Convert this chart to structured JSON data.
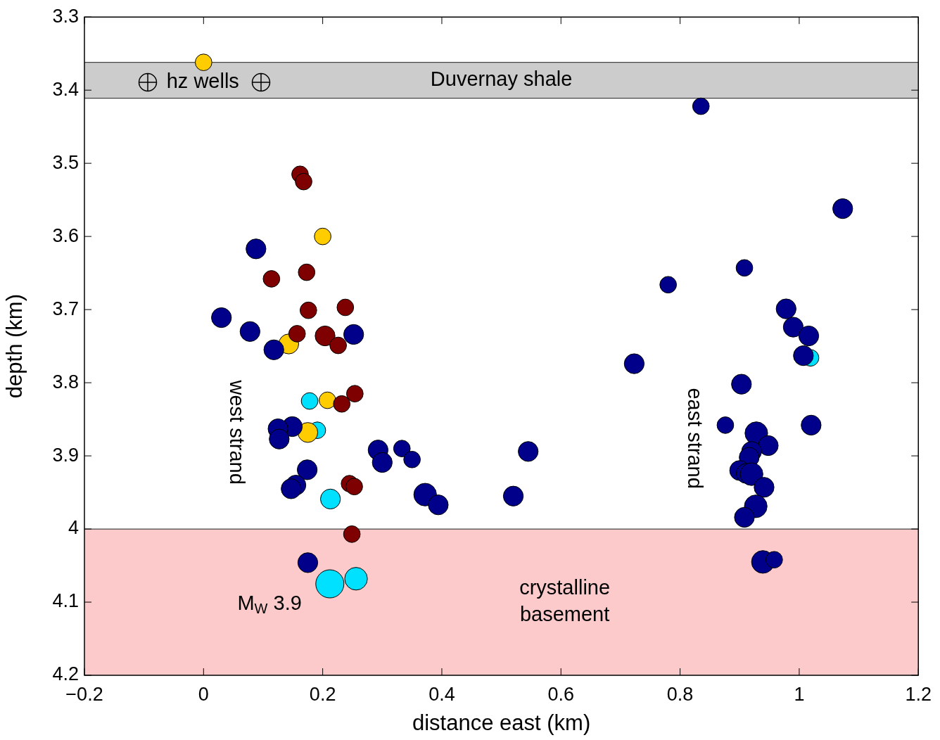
{
  "chart_data": {
    "type": "bubble",
    "xlabel": "distance east (km)",
    "ylabel": "depth (km)",
    "xlim": [
      -0.2,
      1.2
    ],
    "xticks": [
      {
        "value": -0.2,
        "label": "−0.2"
      },
      0,
      0.2,
      0.4,
      0.6,
      0.8,
      1,
      1.2
    ],
    "ylim": [
      4.2,
      3.3
    ],
    "yticks": [
      3.3,
      3.4,
      3.5,
      3.6,
      3.7,
      3.8,
      3.9,
      4,
      4.1,
      4.2
    ],
    "legend": false,
    "series": [
      {
        "color": "#00008b",
        "x": [
          0.088,
          0.03,
          0.078,
          0.118,
          0.252,
          0.149,
          0.125,
          0.127,
          0.174,
          0.155,
          0.147,
          0.293,
          0.3,
          0.333,
          0.35,
          0.372,
          0.394,
          0.52,
          0.545,
          0.175,
          0.835,
          1.073,
          0.78,
          0.908,
          0.723,
          0.978,
          0.99,
          1.016,
          1.007,
          0.903,
          0.876,
          1.02,
          0.928,
          0.948,
          0.92,
          0.916,
          0.9,
          0.911,
          0.92,
          0.941,
          0.927,
          0.908,
          0.939,
          0.958
        ],
        "values": [
          3.617,
          3.711,
          3.73,
          3.755,
          3.734,
          3.86,
          3.863,
          3.877,
          3.919,
          3.94,
          3.945,
          3.892,
          3.909,
          3.89,
          3.905,
          3.953,
          3.967,
          3.955,
          3.894,
          4.046,
          3.422,
          3.562,
          3.666,
          3.643,
          3.774,
          3.699,
          3.724,
          3.736,
          3.763,
          3.802,
          3.858,
          3.858,
          3.869,
          3.886,
          3.894,
          3.902,
          3.92,
          3.924,
          3.925,
          3.943,
          3.969,
          3.984,
          4.045,
          4.042
        ],
        "sizes": [
          0.5,
          0.5,
          0.5,
          0.5,
          0.5,
          0.5,
          0.5,
          0.5,
          0.5,
          0.5,
          0.5,
          0.5,
          0.5,
          0.35,
          0.35,
          0.65,
          0.5,
          0.5,
          0.5,
          0.5,
          0.35,
          0.5,
          0.35,
          0.35,
          0.5,
          0.5,
          0.5,
          0.5,
          0.5,
          0.5,
          0.35,
          0.5,
          0.65,
          0.5,
          0.5,
          0.5,
          0.5,
          0.5,
          0.65,
          0.5,
          0.65,
          0.5,
          0.65,
          0.35
        ]
      },
      {
        "color": "#7f0000",
        "x": [
          0.162,
          0.168,
          0.114,
          0.173,
          0.176,
          0.238,
          0.157,
          0.204,
          0.226,
          0.254,
          0.232,
          0.245,
          0.253,
          0.249
        ],
        "values": [
          3.515,
          3.525,
          3.658,
          3.649,
          3.701,
          3.697,
          3.733,
          3.736,
          3.749,
          3.815,
          3.829,
          3.938,
          3.942,
          4.007
        ],
        "sizes": [
          0.35,
          0.35,
          0.35,
          0.35,
          0.35,
          0.35,
          0.35,
          0.5,
          0.35,
          0.35,
          0.35,
          0.35,
          0.35,
          0.35
        ]
      },
      {
        "color": "#ffcc00",
        "x": [
          0,
          0.2,
          0.143,
          0.208,
          0.175
        ],
        "values": [
          3.362,
          3.6,
          3.747,
          3.824,
          3.868
        ],
        "sizes": [
          0.35,
          0.35,
          0.5,
          0.35,
          0.5
        ]
      },
      {
        "color": "#00e0ff",
        "x": [
          0.178,
          0.191,
          0.213,
          0.212,
          0.256,
          1.019
        ],
        "values": [
          3.825,
          3.865,
          3.959,
          4.075,
          4.068,
          3.766
        ],
        "sizes": [
          0.35,
          0.35,
          0.5,
          1,
          0.65,
          0.35
        ]
      }
    ],
    "bands": [
      {
        "axis": "y",
        "from": 3.362,
        "to": 3.411,
        "label": "Duvernay shale",
        "color": "#cccccc"
      },
      {
        "axis": "y",
        "from": 4.0,
        "to": 4.2,
        "label": "crystalline basement",
        "color": "#fccaca"
      }
    ],
    "annotations": [
      "hz wells",
      "west strand",
      "east strand",
      "M$_{W}$ 3.9"
    ]
  }
}
